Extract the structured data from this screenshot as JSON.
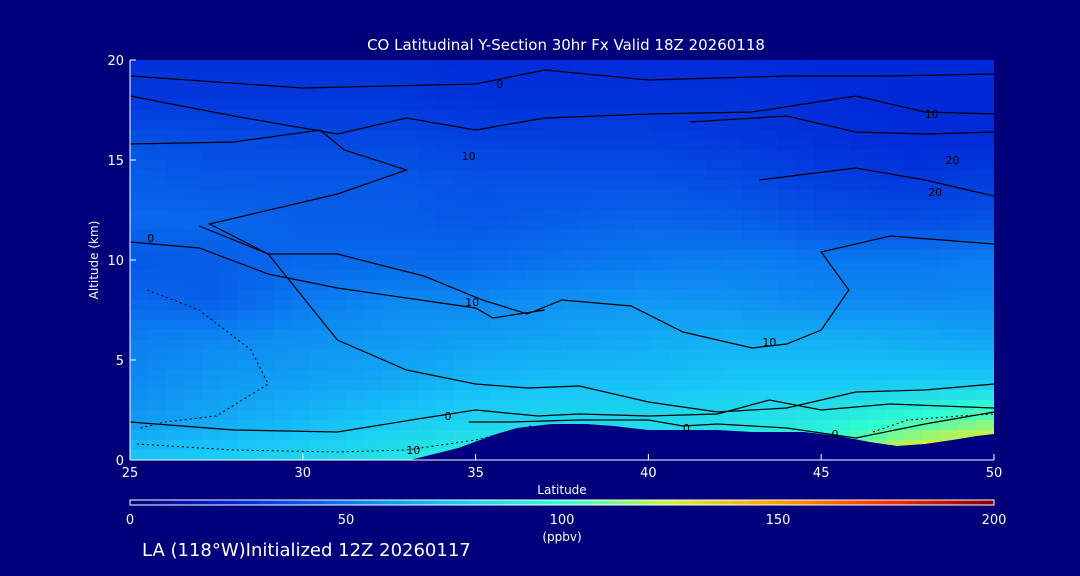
{
  "colors": {
    "background": "#00007a",
    "text": "#ffffff",
    "contour": "#000000",
    "terrain": "#000080"
  },
  "footer": {
    "location_text": "LA (118°W)Initialized 12Z 20260117"
  },
  "chart_data": {
    "type": "heatmap",
    "title": "CO Latitudinal Y-Section 30hr  Fx Valid 18Z 20260118",
    "xlabel": "Latitude",
    "ylabel": "Altitude (km)",
    "xlim": [
      25,
      50
    ],
    "ylim": [
      0,
      20
    ],
    "x_ticks": [
      25,
      30,
      35,
      40,
      45,
      50
    ],
    "y_ticks": [
      0,
      5,
      10,
      15,
      20
    ],
    "grid": false,
    "colorbar": {
      "label": "(ppbv)",
      "range": [
        0,
        200
      ],
      "ticks": [
        0,
        50,
        100,
        150,
        200
      ],
      "placement": "bottom"
    },
    "colormap": [
      {
        "value": 0,
        "color": "#00007f"
      },
      {
        "value": 25,
        "color": "#0028d8"
      },
      {
        "value": 50,
        "color": "#0a78f0"
      },
      {
        "value": 75,
        "color": "#18c8f8"
      },
      {
        "value": 100,
        "color": "#30ffd0"
      },
      {
        "value": 125,
        "color": "#d0f040"
      },
      {
        "value": 150,
        "color": "#ffa000"
      },
      {
        "value": 175,
        "color": "#f83000"
      },
      {
        "value": 200,
        "color": "#800000"
      }
    ],
    "field_lat": [
      25,
      27.5,
      30,
      32.5,
      35,
      37.5,
      40,
      42.5,
      45,
      47.5,
      50
    ],
    "field_alt": [
      0,
      2,
      4,
      6,
      8,
      10,
      12,
      14,
      16,
      18,
      20
    ],
    "concentration_ppbv": [
      [
        75,
        78,
        82,
        88,
        95,
        95,
        90,
        95,
        105,
        135,
        150
      ],
      [
        60,
        65,
        70,
        75,
        80,
        82,
        82,
        85,
        90,
        100,
        110
      ],
      [
        55,
        60,
        62,
        65,
        70,
        72,
        72,
        74,
        74,
        75,
        75
      ],
      [
        52,
        55,
        58,
        60,
        62,
        64,
        66,
        68,
        68,
        66,
        64
      ],
      [
        45,
        42,
        50,
        55,
        55,
        58,
        60,
        58,
        55,
        55,
        55
      ],
      [
        40,
        42,
        45,
        45,
        45,
        48,
        50,
        52,
        50,
        50,
        52
      ],
      [
        45,
        45,
        42,
        42,
        40,
        42,
        44,
        42,
        38,
        36,
        38
      ],
      [
        42,
        40,
        40,
        40,
        38,
        38,
        38,
        36,
        32,
        30,
        32
      ],
      [
        38,
        36,
        35,
        35,
        33,
        32,
        32,
        30,
        28,
        26,
        26
      ],
      [
        30,
        30,
        30,
        30,
        28,
        28,
        28,
        28,
        26,
        25,
        25
      ],
      [
        28,
        28,
        28,
        28,
        26,
        26,
        26,
        26,
        25,
        25,
        25
      ]
    ],
    "contour_labels": [
      {
        "text": "0",
        "lat": 25.6,
        "alt": 11.1
      },
      {
        "text": "0",
        "lat": 35.7,
        "alt": 18.8
      },
      {
        "text": "10",
        "lat": 34.8,
        "alt": 15.2
      },
      {
        "text": "10",
        "lat": 48.2,
        "alt": 17.3
      },
      {
        "text": "20",
        "lat": 48.8,
        "alt": 15.0
      },
      {
        "text": "20",
        "lat": 48.3,
        "alt": 13.4
      },
      {
        "text": "10",
        "lat": 34.9,
        "alt": 7.9
      },
      {
        "text": "10",
        "lat": 43.5,
        "alt": 5.9
      },
      {
        "text": "0",
        "lat": 34.2,
        "alt": 2.2
      },
      {
        "text": "0",
        "lat": 41.1,
        "alt": 1.6
      },
      {
        "text": "0",
        "lat": 45.4,
        "alt": 1.3
      },
      {
        "text": "10",
        "lat": 33.2,
        "alt": 0.5
      }
    ],
    "terrain_profile": {
      "lat": [
        33.1,
        34.5,
        35.6,
        36.2,
        37.2,
        38.2,
        39.0,
        40.0,
        41.0,
        42.0,
        43.0,
        44.5,
        45.5,
        46.4,
        47.2,
        48.0,
        48.8,
        49.5,
        50.0
      ],
      "alt_km": [
        0.0,
        0.6,
        1.3,
        1.6,
        1.8,
        1.8,
        1.7,
        1.5,
        1.5,
        1.5,
        1.4,
        1.4,
        1.2,
        0.9,
        0.7,
        0.8,
        1.0,
        1.2,
        1.3
      ]
    }
  }
}
